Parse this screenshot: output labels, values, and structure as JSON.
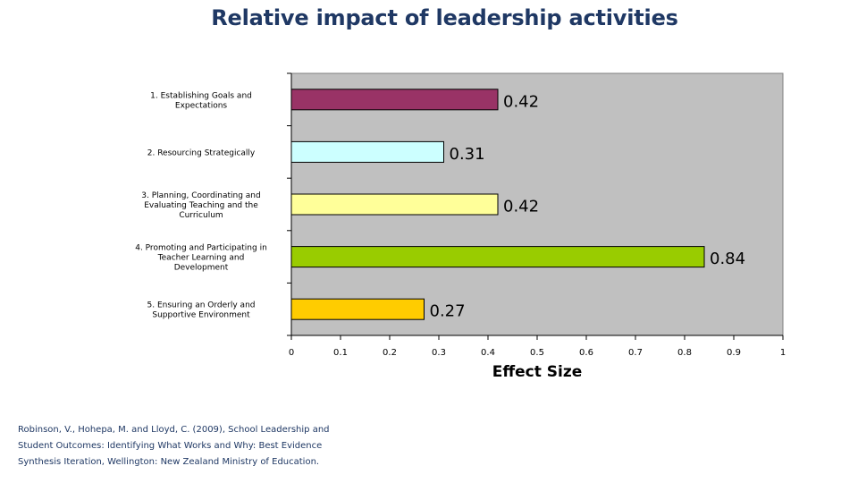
{
  "title": "Relative impact of leadership activities",
  "citation": [
    "Robinson, V., Hohepa, M. and Lloyd, C. (2009), School Leadership and",
    "Student Outcomes: Identifying What Works and Why:  Best Evidence",
    "Synthesis Iteration, Wellington: New Zealand Ministry of Education."
  ],
  "chart_data": {
    "type": "bar",
    "orientation": "horizontal",
    "xlabel": "Effect Size",
    "ylabel": "",
    "xlim": [
      0,
      1
    ],
    "x_ticks": [
      "0",
      "0.1",
      "0.2",
      "0.3",
      "0.4",
      "0.5",
      "0.6",
      "0.7",
      "0.8",
      "0.9",
      "1"
    ],
    "grid": false,
    "plot_background": "#c0c0c0",
    "categories": [
      [
        "1. Establishing Goals and",
        "Expectations"
      ],
      [
        "2. Resourcing Strategically"
      ],
      [
        "3. Planning, Coordinating and",
        "Evaluating Teaching and the",
        "Curriculum"
      ],
      [
        "4. Promoting and Participating in",
        "Teacher Learning and",
        "Development"
      ],
      [
        "5. Ensuring an Orderly and",
        "Supportive Environment"
      ]
    ],
    "values": [
      0.42,
      0.31,
      0.42,
      0.84,
      0.27
    ],
    "data_labels": [
      "0.42",
      "0.31",
      "0.42",
      "0.84",
      "0.27"
    ],
    "colors": [
      "#993366",
      "#ccffff",
      "#ffff99",
      "#99cc00",
      "#ffcc00"
    ]
  }
}
